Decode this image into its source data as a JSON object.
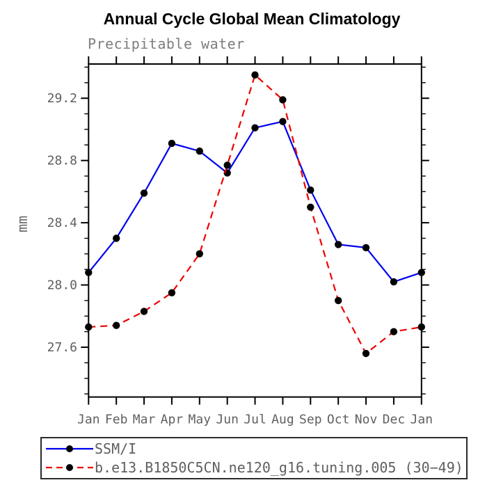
{
  "chart_data": {
    "type": "line",
    "title": "Annual Cycle Global Mean Climatology",
    "subtitle": "Precipitable water",
    "ylabel": "mm",
    "xlabel": "",
    "categories": [
      "Jan",
      "Feb",
      "Mar",
      "Apr",
      "May",
      "Jun",
      "Jul",
      "Aug",
      "Sep",
      "Oct",
      "Nov",
      "Dec",
      "Jan"
    ],
    "ylim": [
      27.28,
      29.42
    ],
    "yticks_major": [
      27.6,
      28.0,
      28.4,
      28.8,
      29.2
    ],
    "ytick_labels": [
      "27.6",
      "28.0",
      "28.4",
      "28.8",
      "29.2"
    ],
    "ytick_minor_step": 0.1,
    "grid": false,
    "legend_position": "bottom-left-box",
    "axis_color": "#000000",
    "marker_color": "#000000",
    "series": [
      {
        "name": "SSM/I",
        "color": "#0000ee",
        "style": "solid",
        "marker": "circle",
        "values": [
          28.08,
          28.3,
          28.59,
          28.91,
          28.86,
          28.72,
          29.01,
          29.05,
          28.61,
          28.26,
          28.24,
          28.02,
          28.08
        ]
      },
      {
        "name": "b.e13.B1850C5CN.ne120_g16.tuning.005 (30−49)",
        "color": "#ee0000",
        "style": "dashed",
        "marker": "circle",
        "values": [
          27.73,
          27.74,
          27.83,
          27.95,
          28.2,
          28.77,
          29.35,
          29.19,
          28.5,
          27.9,
          27.56,
          27.7,
          27.73
        ]
      }
    ]
  }
}
